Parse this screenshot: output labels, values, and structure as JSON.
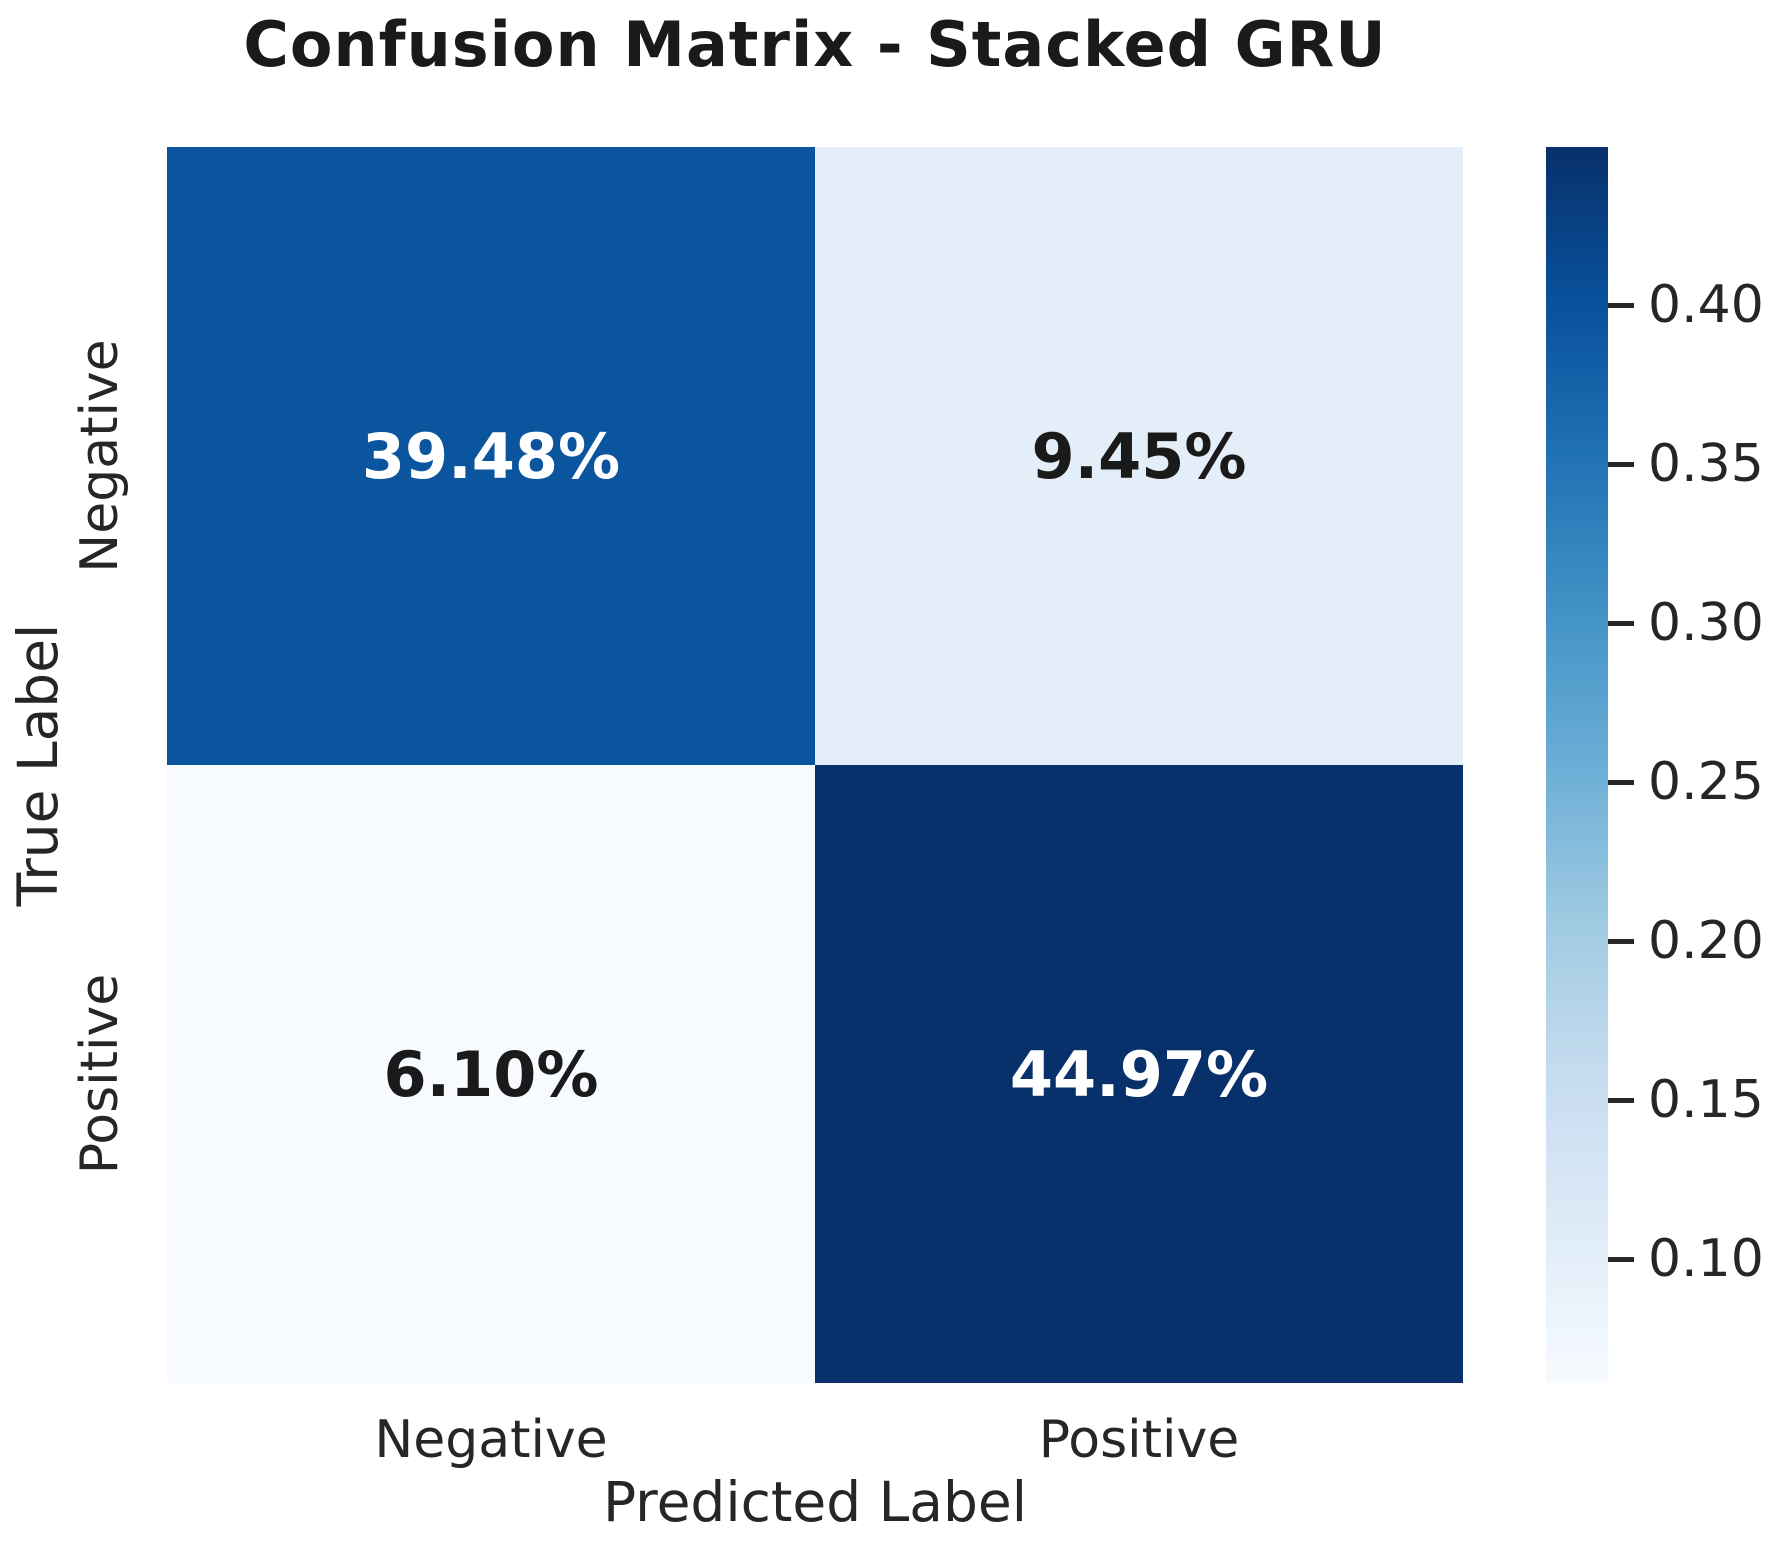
{
  "chart_data": {
    "type": "heatmap",
    "title": "Confusion Matrix - Stacked GRU",
    "xlabel": "Predicted Label",
    "ylabel": "True Label",
    "x_categories": [
      "Negative",
      "Positive"
    ],
    "y_categories": [
      "Negative",
      "Positive"
    ],
    "matrix_percent": [
      [
        39.48,
        9.45
      ],
      [
        6.1,
        44.97
      ]
    ],
    "cells": [
      {
        "true_label": "Negative",
        "predicted_label": "Negative",
        "value_percent": 39.48,
        "label": "39.48%",
        "bg": "#0b559f",
        "text_color": "#ffffff"
      },
      {
        "true_label": "Negative",
        "predicted_label": "Positive",
        "value_percent": 9.45,
        "label": "9.45%",
        "bg": "#e4eef8",
        "text_color": "#1a1a1a"
      },
      {
        "true_label": "Positive",
        "predicted_label": "Negative",
        "value_percent": 6.1,
        "label": "6.10%",
        "bg": "#f7fbff",
        "text_color": "#1a1a1a"
      },
      {
        "true_label": "Positive",
        "predicted_label": "Positive",
        "value_percent": 44.97,
        "label": "44.97%",
        "bg": "#08306b",
        "text_color": "#ffffff"
      }
    ],
    "colormap": "Blues",
    "colorbar": {
      "vmin": 0.061,
      "vmax": 0.4497,
      "ticks": [
        {
          "label": "0.40",
          "value": 0.4
        },
        {
          "label": "0.35",
          "value": 0.35
        },
        {
          "label": "0.30",
          "value": 0.3
        },
        {
          "label": "0.25",
          "value": 0.25
        },
        {
          "label": "0.20",
          "value": 0.2
        },
        {
          "label": "0.15",
          "value": 0.15
        },
        {
          "label": "0.10",
          "value": 0.1
        }
      ],
      "gradient_stops": [
        {
          "offset_percent": 0,
          "color": "#f7fbff"
        },
        {
          "offset_percent": 12.5,
          "color": "#deebf7"
        },
        {
          "offset_percent": 25,
          "color": "#c6dbef"
        },
        {
          "offset_percent": 37.5,
          "color": "#9ecae1"
        },
        {
          "offset_percent": 50,
          "color": "#6baed6"
        },
        {
          "offset_percent": 62.5,
          "color": "#4292c6"
        },
        {
          "offset_percent": 75,
          "color": "#2171b5"
        },
        {
          "offset_percent": 87.5,
          "color": "#08519c"
        },
        {
          "offset_percent": 100,
          "color": "#08306b"
        }
      ]
    },
    "layout": {
      "legend_position": "right-colorbar",
      "grid": false,
      "background_color": "#ffffff",
      "title_color": "#1a1a1a",
      "tick_label_color": "#262626"
    }
  }
}
